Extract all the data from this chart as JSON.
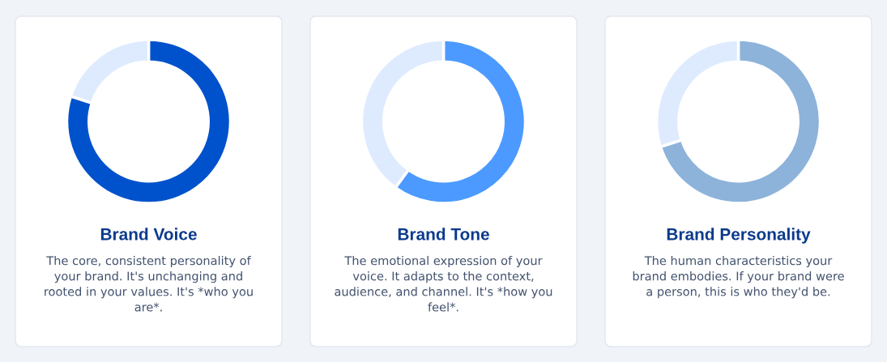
{
  "chart_data": [
    {
      "type": "donut",
      "title": "Brand Voice",
      "annotations": [
        "The core, consistent personality of your brand. It's unchanging and rooted in your values. It's *who you are*."
      ],
      "categories": [
        null,
        null
      ],
      "values": [
        80,
        20
      ],
      "colors": [
        "#0052cc",
        "#deebff"
      ]
    },
    {
      "type": "donut",
      "title": "Brand Tone",
      "annotations": [
        "The emotional expression of your voice. It adapts to the context, audience, and channel. It's *how you feel*."
      ],
      "categories": [
        null,
        null
      ],
      "values": [
        60,
        40
      ],
      "colors": [
        "#4c9aff",
        "#deebff"
      ]
    },
    {
      "type": "donut",
      "title": "Brand Personality",
      "annotations": [
        "The human characteristics your brand embodies. If your brand were a person, this is who they'd be."
      ],
      "categories": [
        null,
        null
      ],
      "values": [
        70,
        30
      ],
      "colors": [
        "#8db3da",
        "#deebff"
      ]
    }
  ]
}
